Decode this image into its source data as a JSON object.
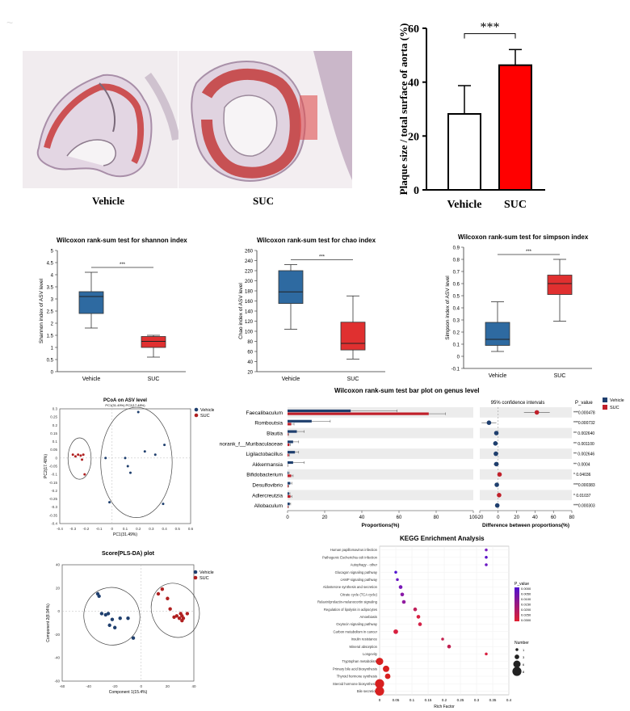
{
  "corner_mark": "~",
  "histology": {
    "labels": [
      "Vehicle",
      "SUC"
    ],
    "colors": {
      "tissue": "#e8dce8",
      "plaque": "#c83a3a",
      "background": "#f4f2f3"
    }
  },
  "chart_data": [
    {
      "id": "plaque",
      "type": "bar",
      "ylabel": "Plaque size / total surface of aorta (%)",
      "categories": [
        "Vehicle",
        "SUC"
      ],
      "values": [
        28.2,
        46.3
      ],
      "errors": [
        10.5,
        5.8
      ],
      "ylim": [
        0,
        60
      ],
      "yticks": [
        "0",
        "20",
        "40",
        "60"
      ],
      "significance": "***",
      "colors": [
        "#ffffff",
        "#ff0000"
      ]
    },
    {
      "id": "shannon",
      "type": "box",
      "title": "Wilcoxon rank-sum test for shannon index",
      "ylabel": "Shannon index of ASV level",
      "categories": [
        "Vehicle",
        "SUC"
      ],
      "boxes": [
        {
          "min": 1.8,
          "q1": 2.4,
          "median": 3.1,
          "q3": 3.3,
          "max": 4.1
        },
        {
          "min": 0.6,
          "q1": 1.0,
          "median": 1.25,
          "q3": 1.45,
          "max": 1.5
        }
      ],
      "ylim": [
        0,
        5
      ],
      "yticks": [
        "0",
        "0.5",
        "1",
        "1.5",
        "2",
        "2.5",
        "3",
        "3.5",
        "4",
        "4.5",
        "5"
      ],
      "significance": "***",
      "colors": [
        "#2e6aa1",
        "#e03030"
      ]
    },
    {
      "id": "chao",
      "type": "box",
      "title": "Wilcoxon rank-sum test for chao index",
      "ylabel": "Chao index of ASV level",
      "categories": [
        "Vehicle",
        "SUC"
      ],
      "boxes": [
        {
          "min": 104,
          "q1": 155,
          "median": 178,
          "q3": 220,
          "max": 232
        },
        {
          "min": 45,
          "q1": 63,
          "median": 76,
          "q3": 118,
          "max": 170
        }
      ],
      "ylim": [
        20,
        260
      ],
      "yticks": [
        "20",
        "40",
        "60",
        "80",
        "100",
        "120",
        "140",
        "160",
        "180",
        "200",
        "220",
        "240",
        "260"
      ],
      "significance": "***",
      "colors": [
        "#2e6aa1",
        "#e03030"
      ]
    },
    {
      "id": "simpson",
      "type": "box",
      "title": "Wilcoxon rank-sum test for simpson index",
      "ylabel": "Simpson index of ASV level",
      "categories": [
        "Vehicle",
        "SUC"
      ],
      "boxes": [
        {
          "min": 0.04,
          "q1": 0.09,
          "median": 0.14,
          "q3": 0.28,
          "max": 0.45
        },
        {
          "min": 0.29,
          "q1": 0.51,
          "median": 0.6,
          "q3": 0.67,
          "max": 0.8
        }
      ],
      "ylim": [
        -0.1,
        0.9
      ],
      "yticks": [
        "-0.1",
        "0",
        "0.1",
        "0.2",
        "0.3",
        "0.4",
        "0.5",
        "0.6",
        "0.7",
        "0.8",
        "0.9"
      ],
      "significance": "***",
      "colors": [
        "#2e6aa1",
        "#e03030"
      ]
    },
    {
      "id": "pcoa",
      "type": "scatter",
      "title": "PCoA on ASV level",
      "subtitle": "PC1(31.49%) PC2(17.48%)",
      "xlabel": "PC1(31.49%)",
      "ylabel": "PC2(17.48%)",
      "xlim": [
        -0.4,
        0.6
      ],
      "ylim": [
        -0.4,
        0.3
      ],
      "xticks": [
        "-0.4",
        "-0.3",
        "-0.2",
        "-0.1",
        "0",
        "0.1",
        "0.2",
        "0.3",
        "0.4",
        "0.5",
        "0.6"
      ],
      "yticks": [
        "-0.4",
        "-0.35",
        "-0.3",
        "-0.25",
        "-0.2",
        "-0.15",
        "-0.1",
        "-0.05",
        "0",
        "0.05",
        "0.1",
        "0.15",
        "0.2",
        "0.25",
        "0.3"
      ],
      "legend": [
        "Vehicle",
        "SUC"
      ],
      "series": [
        {
          "name": "Vehicle",
          "color": "#1f3f6e",
          "points": [
            [
              -0.05,
              0.0
            ],
            [
              0.1,
              0.0
            ],
            [
              0.2,
              0.28
            ],
            [
              0.25,
              0.04
            ],
            [
              0.33,
              0.02
            ],
            [
              0.4,
              0.08
            ],
            [
              0.12,
              -0.05
            ],
            [
              0.14,
              -0.09
            ],
            [
              -0.02,
              -0.27
            ],
            [
              0.39,
              -0.28
            ]
          ]
        },
        {
          "name": "SUC",
          "color": "#b02020",
          "points": [
            [
              -0.3,
              0.02
            ],
            [
              -0.28,
              0.01
            ],
            [
              -0.26,
              0.02
            ],
            [
              -0.24,
              0.015
            ],
            [
              -0.22,
              0.02
            ],
            [
              -0.23,
              -0.01
            ],
            [
              -0.21,
              -0.1
            ]
          ]
        }
      ]
    },
    {
      "id": "plsda",
      "type": "scatter",
      "title": "Score(PLS-DA) plot",
      "xlabel": "Component 1(15.4%)",
      "ylabel": "Component 2(8.94%)",
      "xlim": [
        -60,
        40
      ],
      "ylim": [
        -60,
        40
      ],
      "xticks": [
        "-60",
        "-40",
        "-20",
        "0",
        "20",
        "40"
      ],
      "yticks": [
        "-60",
        "-40",
        "-20",
        "0",
        "20",
        "40"
      ],
      "legend": [
        "Vehicle",
        "SUC"
      ],
      "series": [
        {
          "name": "Vehicle",
          "color": "#1f3f6e",
          "points": [
            [
              -33,
              15
            ],
            [
              -32,
              13
            ],
            [
              -30,
              -2
            ],
            [
              -27,
              -3
            ],
            [
              -25,
              -2
            ],
            [
              -24,
              -12
            ],
            [
              -22,
              -7
            ],
            [
              -20,
              -14
            ],
            [
              -16,
              -6
            ],
            [
              -10,
              -6
            ],
            [
              -6,
              -23
            ]
          ]
        },
        {
          "name": "SUC",
          "color": "#b02020",
          "points": [
            [
              13,
              15
            ],
            [
              16,
              19
            ],
            [
              20,
              11
            ],
            [
              22,
              2
            ],
            [
              25,
              -5
            ],
            [
              27,
              -4
            ],
            [
              29,
              -6
            ],
            [
              30,
              -2
            ],
            [
              31,
              -4
            ],
            [
              31,
              -8
            ],
            [
              32,
              -6
            ],
            [
              35,
              -2
            ]
          ]
        }
      ]
    },
    {
      "id": "wilcoxon_genus",
      "type": "bar",
      "title": "Wilcoxon rank-sum test bar plot on genus level",
      "xlabel": "Proportions(%)",
      "xlim": [
        0,
        100
      ],
      "xticks": [
        "0",
        "20",
        "40",
        "60",
        "80",
        "100"
      ],
      "categories": [
        "Faecalibaculum",
        "Romboutsia",
        "Blautia",
        "norank_f__Muribaculaceae",
        "Ligilactobacillus",
        "Akkermansia",
        "Bifidobacterium",
        "Desulfovibrio",
        "Adlercreutzia",
        "Allobaculum"
      ],
      "series": [
        {
          "name": "Vehicle",
          "color": "#1f3f6e",
          "values": [
            34,
            13,
            5,
            3,
            4,
            3,
            0.4,
            1.5,
            0.8,
            1.2
          ],
          "errors": [
            25,
            10,
            4,
            3,
            2,
            6,
            0.5,
            0.8,
            0.5,
            0.5
          ]
        },
        {
          "name": "SUC",
          "color": "#c0202a",
          "values": [
            76,
            2,
            0.3,
            1,
            0.6,
            0.1,
            2,
            0.4,
            1.6,
            0.3
          ],
          "errors": [
            9,
            1.5,
            0.3,
            0.5,
            0.4,
            0.1,
            1,
            0.3,
            0.7,
            0.2
          ]
        }
      ],
      "ci": {
        "title": "95% confidence intervals",
        "xlabel": "Difference between proportions(%)",
        "xlim": [
          -20,
          80
        ],
        "xticks": [
          "-20",
          "0",
          "20",
          "40",
          "60",
          "80"
        ],
        "diffs": [
          42,
          -10,
          -2,
          -3,
          -2.5,
          -2,
          1.5,
          -1.5,
          1,
          -1
        ],
        "lo": [
          28,
          -18,
          -3,
          -5,
          -3.5,
          -5,
          0.5,
          -2.5,
          0.3,
          -1.6
        ],
        "hi": [
          56,
          -2,
          -0.5,
          -1,
          -1.2,
          1,
          2.5,
          -0.5,
          1.7,
          -0.4
        ],
        "colors": [
          "#c0202a",
          "#1f3f6e",
          "#1f3f6e",
          "#1f3f6e",
          "#1f3f6e",
          "#1f3f6e",
          "#c0202a",
          "#1f3f6e",
          "#c0202a",
          "#1f3f6e"
        ]
      },
      "pvalue_header": "P_value",
      "pvalues": [
        "***0.000478",
        "***0.000732",
        "** 0.002640",
        "** 0.001100",
        "** 0.002646",
        "** 0.0004",
        "* 0.04036",
        "***0.000383",
        "* 0.01037",
        "***0.000303"
      ],
      "legend": [
        "Vehicle",
        "SUC"
      ]
    },
    {
      "id": "kegg",
      "type": "scatter",
      "title": "KEGG Enrichment Analysis",
      "xlabel": "Rich Factor",
      "xlim": [
        0,
        0.4
      ],
      "xticks": [
        "0",
        "0.05",
        "0.1",
        "0.15",
        "0.2",
        "0.25",
        "0.3",
        "0.35",
        "0.4"
      ],
      "categories": [
        "Human papillomavirus infection",
        "Pathogenic Escherichia coli infection",
        "Autophagy - other",
        "Glucagon signaling pathway",
        "cAMP signaling pathway",
        "Aldosterone synthesis and secretion",
        "Citrate cycle (TCA cycle)",
        "Relaxin/prolactin-melanocortin signaling",
        "Regulation of lipolysis in adipocytes",
        "Amoebiasis",
        "Oxytocin signaling pathway",
        "Carbon metabolism in cancer",
        "Insulin resistance",
        "Mineral absorption",
        "Longevity",
        "Tryptophan metabolism",
        "Primary bile acid biosynthesis",
        "Thyroid hormone synthesis",
        "Steroid hormone biosynthesis",
        "Bile secretion"
      ],
      "rich_factor": [
        0.33,
        0.33,
        0.33,
        0.05,
        0.055,
        0.065,
        0.07,
        0.075,
        0.11,
        0.12,
        0.125,
        0.05,
        0.195,
        0.215,
        0.33,
        0.0,
        0.02,
        0.025,
        0.0,
        0.0
      ],
      "counts": [
        1,
        1,
        1,
        1,
        1,
        2,
        2,
        2,
        2,
        2,
        2,
        3,
        1,
        2,
        1,
        6,
        5,
        4,
        8,
        8
      ],
      "colors": [
        "#7a1ec0",
        "#5a10c8",
        "#6a16c4",
        "#5012d0",
        "#6a16c4",
        "#7818b8",
        "#8a1aa8",
        "#921ca0",
        "#c0205a",
        "#d82040",
        "#d42248",
        "#d82040",
        "#c4204e",
        "#c02050",
        "#d82040",
        "#d82020",
        "#d82020",
        "#d82020",
        "#d82020",
        "#d82020"
      ],
      "legend_pvalue": {
        "title": "P_value",
        "ticks": [
          "0.0000",
          "0.0050",
          "0.0100",
          "0.0150",
          "0.0200",
          "0.0250",
          "0.0300"
        ]
      },
      "legend_number": {
        "title": "Number",
        "values": [
          "1",
          "3",
          "6",
          "8"
        ]
      }
    }
  ]
}
